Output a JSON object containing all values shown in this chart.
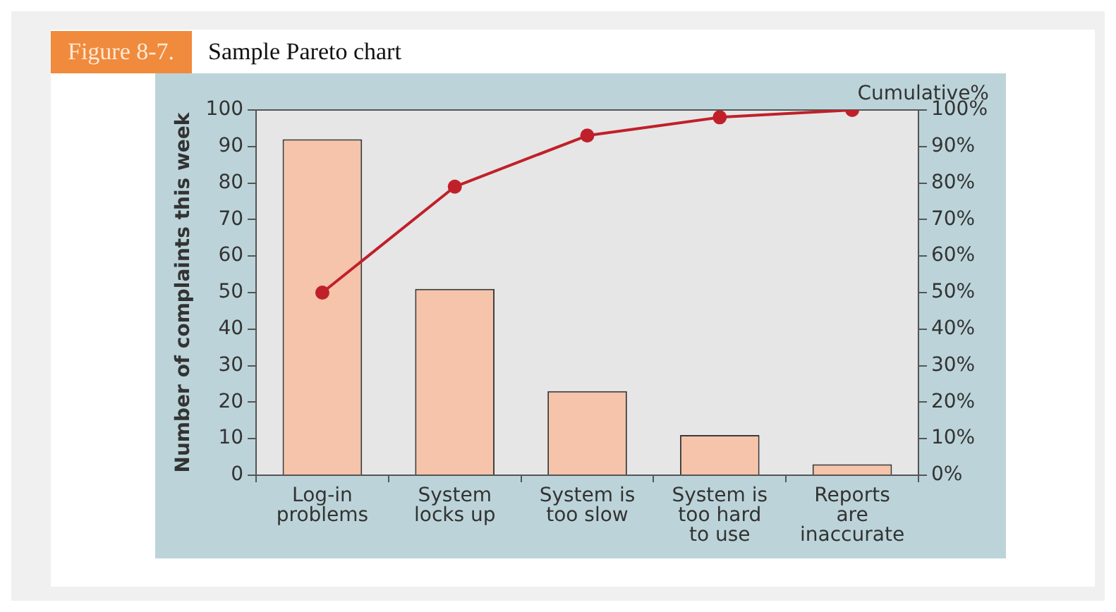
{
  "chart_data": {
    "type": "bar",
    "title": "Figure 8-7.",
    "subtitle": "Sample Pareto chart",
    "categories": [
      "Log-in\nproblems",
      "System\nlocks up",
      "System is\ntoo slow",
      "System is\ntoo hard\nto use",
      "Reports\nare\ninaccurate"
    ],
    "series": [
      {
        "color": "#f5c4aa",
        "values": [
          92,
          51,
          23,
          11,
          3
        ]
      },
      {
        "type": "line",
        "axis": "y2",
        "color": "#c0202a",
        "values": [
          50,
          79,
          93,
          98,
          100
        ]
      }
    ],
    "ylabel": "Number of complaints this week",
    "y2label": "Cumulative%",
    "ylim": [
      0,
      100
    ],
    "yticks": [
      0,
      10,
      20,
      30,
      40,
      50,
      60,
      70,
      80,
      90,
      100
    ],
    "y2lim": [
      0,
      100
    ],
    "y2ticks": [
      {
        "value": 0,
        "label": "0%"
      },
      {
        "value": 10,
        "label": "10%"
      },
      {
        "value": 20,
        "label": "20%"
      },
      {
        "value": 30,
        "label": "30%"
      },
      {
        "value": 40,
        "label": "40%"
      },
      {
        "value": 50,
        "label": "50%"
      },
      {
        "value": 60,
        "label": "60%"
      },
      {
        "value": 70,
        "label": "70%"
      },
      {
        "value": 80,
        "label": "80%"
      },
      {
        "value": 90,
        "label": "90%"
      },
      {
        "value": 100,
        "label": "100%"
      }
    ],
    "marker": "circle",
    "grid": false,
    "legend": false
  }
}
